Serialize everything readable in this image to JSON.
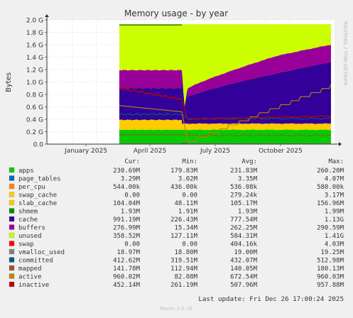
{
  "chart_data": {
    "type": "area",
    "title": "Memory usage - by year",
    "ylabel": "Bytes",
    "watermark": "RRDTOOL / TOBI OETIKER",
    "y_ticks": [
      "0.0",
      "0.2 G",
      "0.4 G",
      "0.6 G",
      "0.8 G",
      "1.0 G",
      "1.2 G",
      "1.4 G",
      "1.6 G",
      "1.8 G",
      "2.0 G"
    ],
    "ylim_gb": [
      0,
      2.0
    ],
    "x_ticks": [
      "January 2025",
      "April 2025",
      "July 2025",
      "October 2025"
    ],
    "legend_headers": [
      "Cur:",
      "Min:",
      "Avg:",
      "Max:"
    ],
    "series": [
      {
        "name": "apps",
        "color": "#00cc00",
        "cur": "230.69M",
        "min": "179.83M",
        "avg": "231.83M",
        "max": "260.20M"
      },
      {
        "name": "page_tables",
        "color": "#0066b3",
        "cur": "3.29M",
        "min": "3.02M",
        "avg": "3.35M",
        "max": "4.07M"
      },
      {
        "name": "per_cpu",
        "color": "#ff8000",
        "cur": "544.00k",
        "min": "436.00k",
        "avg": "536.08k",
        "max": "580.00k"
      },
      {
        "name": "swap_cache",
        "color": "#ffcc00",
        "cur": "0.00",
        "min": "0.00",
        "avg": "279.24k",
        "max": "3.17M"
      },
      {
        "name": "slab_cache",
        "color": "#ffcc00",
        "cur": "104.04M",
        "min": "48.11M",
        "avg": "105.17M",
        "max": "156.96M"
      },
      {
        "name": "shmem",
        "color": "#008f00",
        "cur": "1.93M",
        "min": "1.91M",
        "avg": "1.93M",
        "max": "1.99M"
      },
      {
        "name": "cache",
        "color": "#330099",
        "cur": "991.19M",
        "min": "226.43M",
        "avg": "777.54M",
        "max": "1.13G"
      },
      {
        "name": "buffers",
        "color": "#990099",
        "cur": "276.99M",
        "min": "15.34M",
        "avg": "262.25M",
        "max": "290.59M"
      },
      {
        "name": "unused",
        "color": "#ccff00",
        "cur": "358.52M",
        "min": "127.11M",
        "avg": "584.31M",
        "max": "1.41G"
      },
      {
        "name": "swap",
        "color": "#ff0000",
        "cur": "0.00",
        "min": "0.00",
        "avg": "404.16k",
        "max": "4.03M"
      },
      {
        "name": "vmalloc_used",
        "color": "#808080",
        "cur": "18.97M",
        "min": "18.80M",
        "avg": "19.00M",
        "max": "19.25M"
      },
      {
        "name": "committed",
        "color": "#005a7f",
        "cur": "412.62M",
        "min": "319.51M",
        "avg": "432.07M",
        "max": "512.98M"
      },
      {
        "name": "mapped",
        "color": "#a0522d",
        "cur": "141.78M",
        "min": "112.94M",
        "avg": "140.05M",
        "max": "180.13M"
      },
      {
        "name": "active",
        "color": "#b8860b",
        "cur": "960.02M",
        "min": "82.08M",
        "avg": "672.54M",
        "max": "960.03M"
      },
      {
        "name": "inactive",
        "color": "#c00000",
        "cur": "452.14M",
        "min": "261.19M",
        "avg": "507.96M",
        "max": "957.88M"
      }
    ],
    "stacked_gb": {
      "apps": {
        "pre": 0.23,
        "post": 0.23
      },
      "slab_cache": {
        "pre": 0.16,
        "post": 0.1
      },
      "cache": {
        "pre": 0.51,
        "dip": 0.23,
        "post_start": 0.42,
        "post_end": 0.99
      },
      "buffers": {
        "pre": 0.29,
        "post_start": 0.14,
        "post_end": 0.28
      },
      "total_gb": 1.93
    },
    "lines_gb": {
      "committed": {
        "pre": 0.48,
        "post": 0.41
      },
      "mapped": {
        "pre": 0.15,
        "post": 0.14
      },
      "active": {
        "pre_start": 0.62,
        "pre_end": 0.52,
        "post_start": 0.05,
        "post_end": 0.96
      },
      "inactive": {
        "pre_start": 0.9,
        "pre_end": 0.72,
        "post_start": 0.4,
        "post_end": 0.45
      }
    },
    "grid": true
  },
  "footer": {
    "last_update": "Last update:  Fri Dec 26 17:00:24 2025",
    "version": "Munin 2.0.76"
  }
}
